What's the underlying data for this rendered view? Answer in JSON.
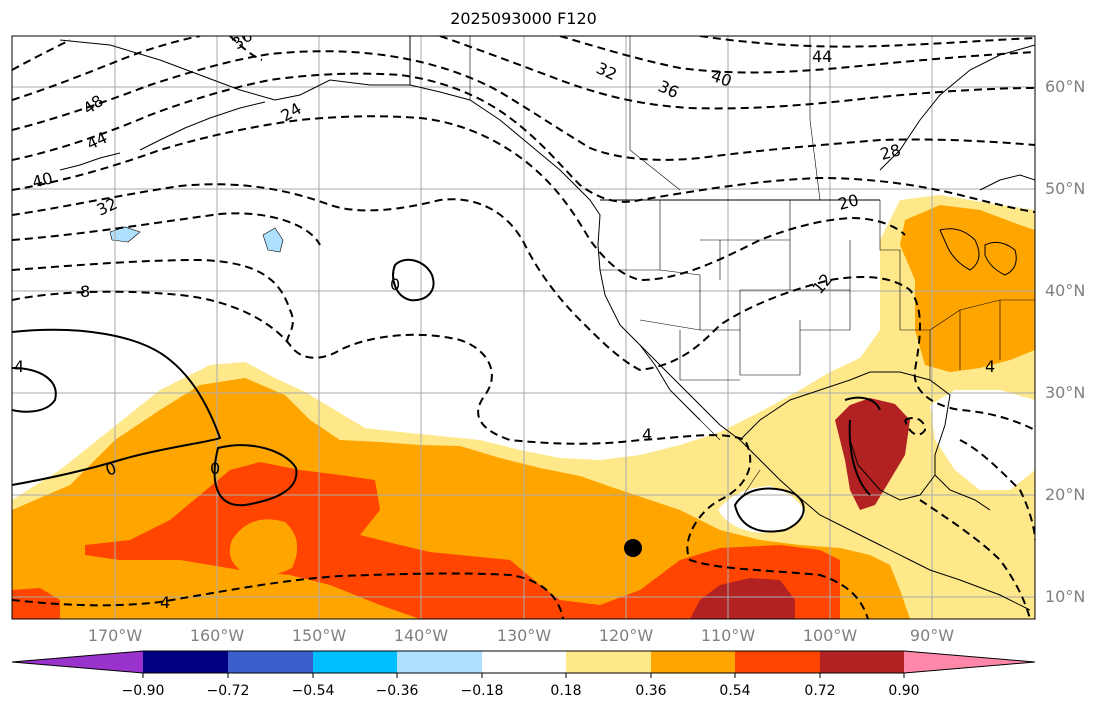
{
  "title": "2025093000 F120",
  "lat_labels": [
    "60°N",
    "50°N",
    "40°N",
    "30°N",
    "20°N",
    "10°N"
  ],
  "lon_labels": [
    "170°W",
    "160°W",
    "150°W",
    "140°W",
    "130°W",
    "120°W",
    "110°W",
    "100°W",
    "90°W"
  ],
  "colorbar": {
    "ticks": [
      "−0.90",
      "−0.72",
      "−0.54",
      "−0.36",
      "−0.18",
      "0.18",
      "0.36",
      "0.54",
      "0.72",
      "0.90"
    ],
    "colors": [
      "#9933cc",
      "#000080",
      "#3a5fcd",
      "#00bfff",
      "#b0e0ff",
      "#ffffff",
      "#ffe88a",
      "#ffa500",
      "#ff4500",
      "#b22222",
      "#ff88aa"
    ]
  },
  "contour_labels": [
    "36",
    "32",
    "36",
    "40",
    "44",
    "48",
    "44",
    "40",
    "32",
    "24",
    "28",
    "20",
    "12",
    "8",
    "4",
    "0",
    "0",
    "4",
    "4",
    "4",
    "0"
  ],
  "marker": {
    "name": "storm-center-marker",
    "lon": -119.3,
    "lat": 15.0
  }
}
